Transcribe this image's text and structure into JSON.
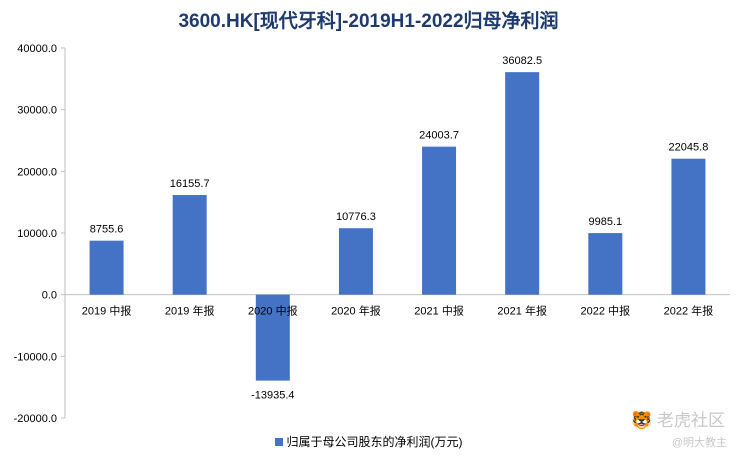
{
  "chart_data": {
    "type": "bar",
    "title": "3600.HK[现代牙科]-2019H1-2022归母净利润",
    "categories": [
      "2019 中报",
      "2019 年报",
      "2020 中报",
      "2020 年报",
      "2021 中报",
      "2021 年报",
      "2022 中报",
      "2022 年报"
    ],
    "series": [
      {
        "name": "归属于母公司股东的净利润(万元)",
        "values": [
          8755.6,
          16155.7,
          -13935.4,
          10776.3,
          24003.7,
          36082.5,
          9985.1,
          22045.8
        ],
        "color": "#4472c4"
      }
    ],
    "data_labels": [
      "8755.6",
      "16155.7",
      "-13935.4",
      "10776.3",
      "24003.7",
      "36082.5",
      "9985.1",
      "22045.8"
    ],
    "y_ticks": [
      "40000.0",
      "30000.0",
      "20000.0",
      "10000.0",
      "0.0",
      "-10000.0",
      "-20000.0"
    ],
    "ylim": [
      -20000,
      40000
    ],
    "grid": false,
    "legend_position": "bottom"
  },
  "watermark": {
    "brand": "老虎社区",
    "author": "@明大教主"
  }
}
